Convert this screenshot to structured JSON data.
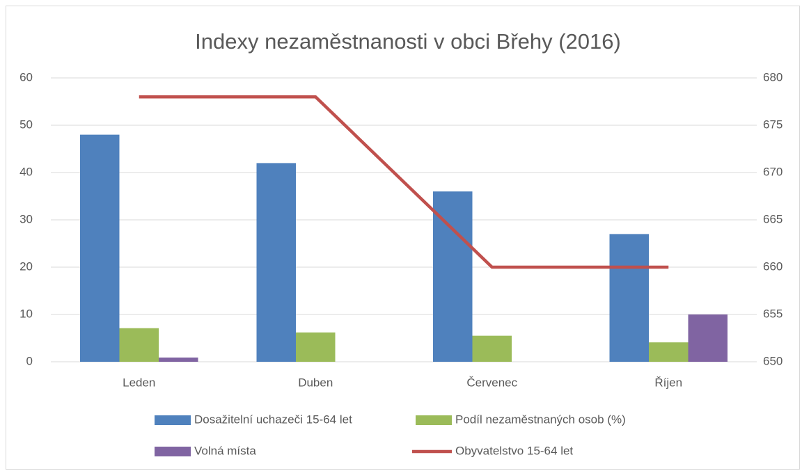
{
  "chart_data": {
    "type": "bar",
    "title": "Indexy nezaměstnanosti v obci Břehy (2016)",
    "categories": [
      "Leden",
      "Duben",
      "Červenec",
      "Říjen"
    ],
    "series": [
      {
        "name": "Dosažitelní uchazeči 15-64 let",
        "color": "#4f81bd",
        "values": [
          48,
          42,
          36,
          27
        ]
      },
      {
        "name": "Podíl nezaměstnaných osob (%)",
        "color": "#9bbb59",
        "values": [
          7.1,
          6.2,
          5.5,
          4.1
        ]
      },
      {
        "name": "Volná místa",
        "color": "#8064a2",
        "values": [
          0.9,
          0,
          0,
          10
        ]
      },
      {
        "name": "Obyvatelstvo 15-64 let",
        "color": "#c0504d",
        "type": "line",
        "axis": "y2",
        "values": [
          678,
          678,
          660,
          660
        ]
      }
    ],
    "ylim": [
      0,
      60
    ],
    "yticks": [
      0,
      10,
      20,
      30,
      40,
      50,
      60
    ],
    "y2lim": [
      650,
      680
    ],
    "y2ticks": [
      650,
      655,
      660,
      665,
      670,
      675,
      680
    ],
    "grid": true,
    "legend": "bottom"
  }
}
